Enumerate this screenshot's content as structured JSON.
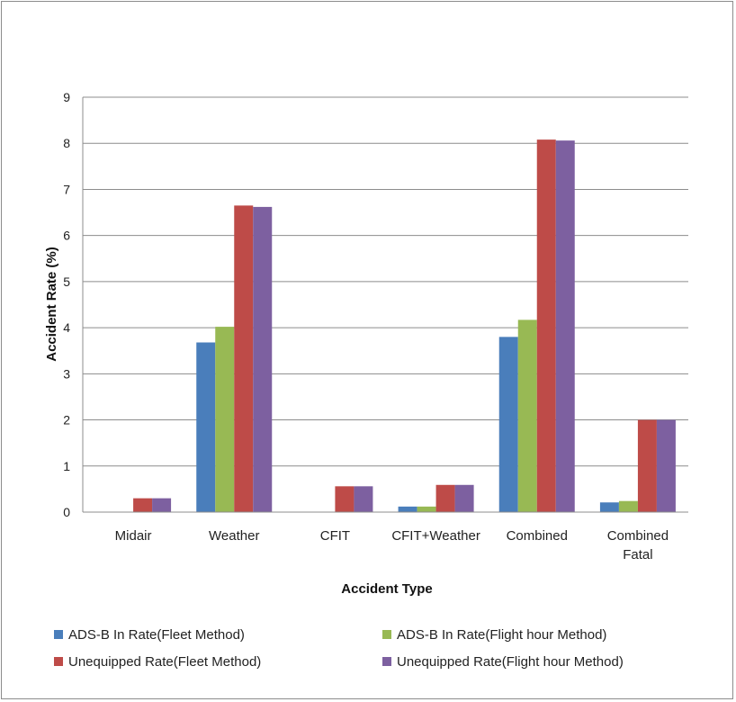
{
  "chart_data": {
    "type": "bar",
    "title": "",
    "xlabel": "Accident Type",
    "ylabel": "Accident Rate (%)",
    "ylim": [
      0,
      9
    ],
    "yticks": [
      0,
      1,
      2,
      3,
      4,
      5,
      6,
      7,
      8,
      9
    ],
    "categories": [
      [
        "Midair"
      ],
      [
        "Weather"
      ],
      [
        "CFIT"
      ],
      [
        "CFIT+Weather"
      ],
      [
        "Combined"
      ],
      [
        "Combined",
        "Fatal"
      ]
    ],
    "grid": true,
    "legend_position": "bottom",
    "series": [
      {
        "name": "ADS-B In Rate(Fleet Method)",
        "color": "#4a7ebb",
        "values": [
          0,
          3.68,
          0,
          0.12,
          3.8,
          0.21
        ]
      },
      {
        "name": "ADS-B In Rate(Flight hour Method)",
        "color": "#98b954",
        "values": [
          0,
          4.02,
          0,
          0.12,
          4.17,
          0.24
        ]
      },
      {
        "name": "Unequipped Rate(Fleet Method)",
        "color": "#be4b48",
        "values": [
          0.3,
          6.65,
          0.56,
          0.59,
          8.08,
          2.0
        ]
      },
      {
        "name": "Unequipped Rate(Flight hour Method)",
        "color": "#7d60a0",
        "values": [
          0.3,
          6.62,
          0.56,
          0.59,
          8.06,
          2.0
        ]
      }
    ]
  }
}
